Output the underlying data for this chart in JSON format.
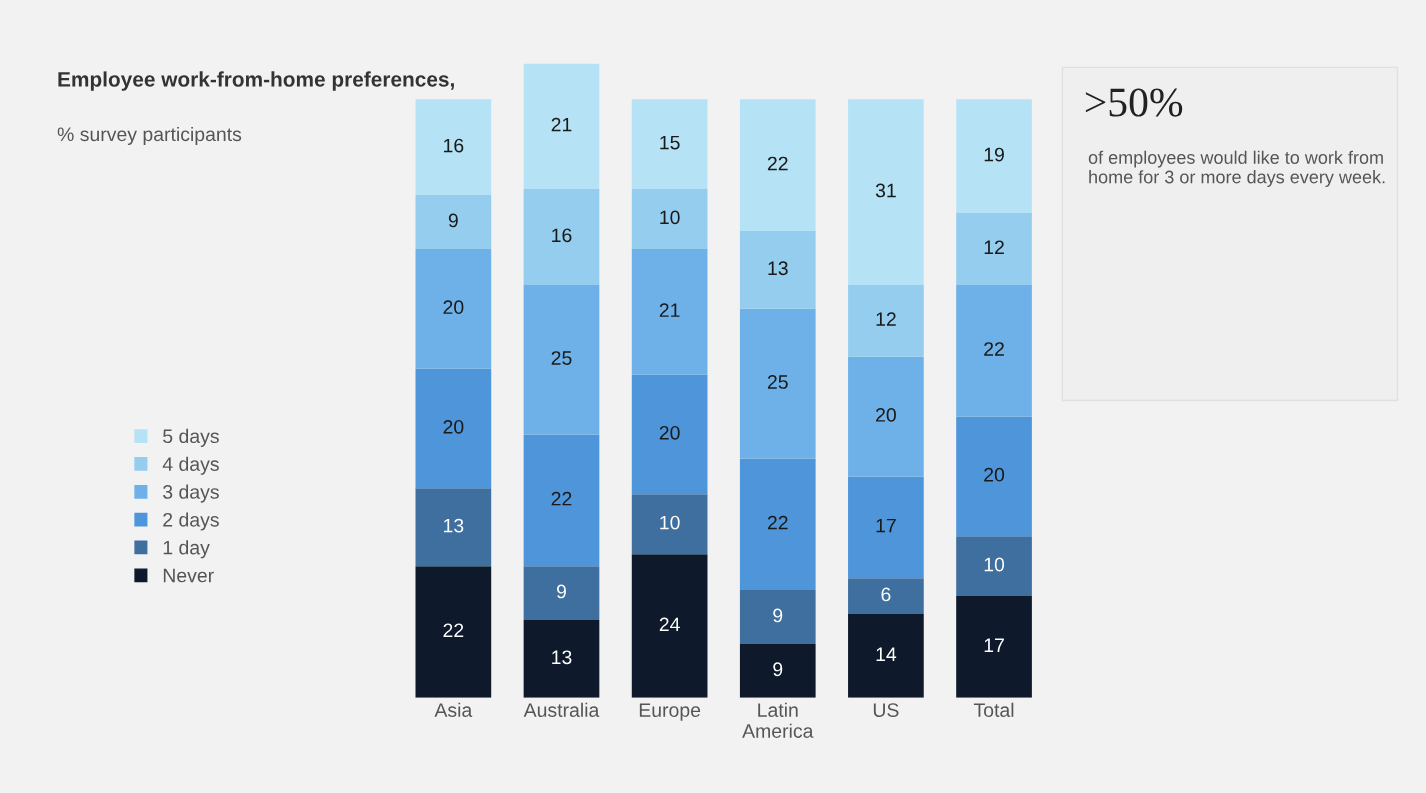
{
  "chart_data": {
    "type": "bar",
    "title": "Employee work-from-home preferences,",
    "subtitle": "% survey participants",
    "categories": [
      "Asia",
      "Australia",
      "Europe",
      "Latin\nAmerica",
      "US",
      "Total"
    ],
    "stacked": true,
    "data_labels": true,
    "legend": "left",
    "grid": false,
    "series": [
      {
        "name": "Never",
        "color": "#0e1a2b",
        "values": [
          22,
          13,
          24,
          9,
          14,
          17
        ]
      },
      {
        "name": "1 day",
        "color": "#3f6f9f",
        "values": [
          13,
          9,
          10,
          9,
          6,
          10
        ]
      },
      {
        "name": "2 days",
        "color": "#4f95da",
        "values": [
          20,
          22,
          20,
          22,
          17,
          20
        ]
      },
      {
        "name": "3 days",
        "color": "#6db1e8",
        "values": [
          20,
          25,
          21,
          25,
          20,
          22
        ]
      },
      {
        "name": "4 days",
        "color": "#95cdee",
        "values": [
          9,
          16,
          10,
          13,
          12,
          12
        ]
      },
      {
        "name": "5 days",
        "color": "#b5e3f5",
        "values": [
          16,
          21,
          15,
          22,
          31,
          19
        ]
      }
    ],
    "annotations": [
      ">50%",
      "of employees would like to work from home for 3 or more days every week."
    ]
  }
}
